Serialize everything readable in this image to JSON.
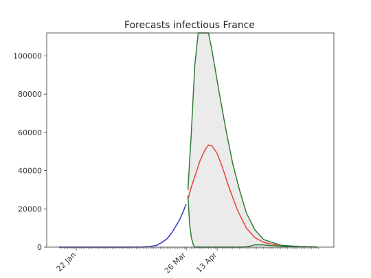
{
  "chart_data": {
    "type": "line",
    "title": "Forecasts infectious France",
    "xlabel": "",
    "ylabel": "",
    "x_start": "2020-01-12",
    "x_end": "2020-06-12",
    "xticks": [
      {
        "label": "22 Jan",
        "date": "2020-01-22"
      },
      {
        "label": "26 Mar",
        "date": "2020-03-26"
      },
      {
        "label": "13 Apr",
        "date": "2020-04-13"
      }
    ],
    "ylim": [
      0,
      112000
    ],
    "yticks": [
      0,
      20000,
      40000,
      60000,
      80000,
      100000
    ],
    "grid": false,
    "legend": "none",
    "colors": {
      "observed": "#3333cc",
      "forecast": "#e8403a",
      "bounds": "#2e7d32",
      "band": "#ebebeb",
      "axis": "#333333"
    },
    "series": [
      {
        "role": "observed",
        "points": [
          [
            "2020-01-12",
            0
          ],
          [
            "2020-02-01",
            0
          ],
          [
            "2020-02-20",
            0
          ],
          [
            "2020-03-01",
            50
          ],
          [
            "2020-03-05",
            300
          ],
          [
            "2020-03-09",
            1000
          ],
          [
            "2020-03-12",
            2500
          ],
          [
            "2020-03-15",
            4500
          ],
          [
            "2020-03-18",
            8000
          ],
          [
            "2020-03-20",
            11000
          ],
          [
            "2020-03-22",
            14000
          ],
          [
            "2020-03-24",
            18000
          ],
          [
            "2020-03-26",
            22500
          ]
        ]
      },
      {
        "role": "forecast",
        "points": [
          [
            "2020-03-27",
            25000
          ],
          [
            "2020-03-29",
            31500
          ],
          [
            "2020-04-01",
            39500
          ],
          [
            "2020-04-03",
            45000
          ],
          [
            "2020-04-06",
            51000
          ],
          [
            "2020-04-08",
            53400
          ],
          [
            "2020-04-10",
            53000
          ],
          [
            "2020-04-13",
            49000
          ],
          [
            "2020-04-16",
            42000
          ],
          [
            "2020-04-20",
            31000
          ],
          [
            "2020-04-25",
            19000
          ],
          [
            "2020-04-30",
            10000
          ],
          [
            "2020-05-05",
            5000
          ],
          [
            "2020-05-10",
            2500
          ],
          [
            "2020-05-20",
            700
          ],
          [
            "2020-06-01",
            200
          ],
          [
            "2020-06-10",
            50
          ]
        ]
      },
      {
        "role": "upper",
        "points": [
          [
            "2020-03-27",
            30000
          ],
          [
            "2020-03-29",
            60000
          ],
          [
            "2020-03-31",
            95000
          ],
          [
            "2020-04-02",
            112000
          ],
          [
            "2020-04-08",
            112000
          ],
          [
            "2020-04-10",
            103000
          ],
          [
            "2020-04-14",
            82000
          ],
          [
            "2020-04-18",
            62000
          ],
          [
            "2020-04-22",
            44000
          ],
          [
            "2020-04-26",
            30000
          ],
          [
            "2020-04-30",
            18000
          ],
          [
            "2020-05-05",
            9000
          ],
          [
            "2020-05-10",
            4000
          ],
          [
            "2020-05-20",
            1000
          ],
          [
            "2020-06-01",
            200
          ],
          [
            "2020-06-10",
            50
          ]
        ]
      },
      {
        "role": "lower",
        "points": [
          [
            "2020-03-27",
            27000
          ],
          [
            "2020-03-28",
            12000
          ],
          [
            "2020-03-29",
            5000
          ],
          [
            "2020-03-30",
            1500
          ],
          [
            "2020-03-31",
            0
          ],
          [
            "2020-04-29",
            0
          ],
          [
            "2020-05-02",
            500
          ],
          [
            "2020-05-05",
            1200
          ],
          [
            "2020-05-09",
            1200
          ],
          [
            "2020-05-15",
            800
          ],
          [
            "2020-05-25",
            300
          ],
          [
            "2020-06-10",
            50
          ]
        ]
      }
    ]
  }
}
